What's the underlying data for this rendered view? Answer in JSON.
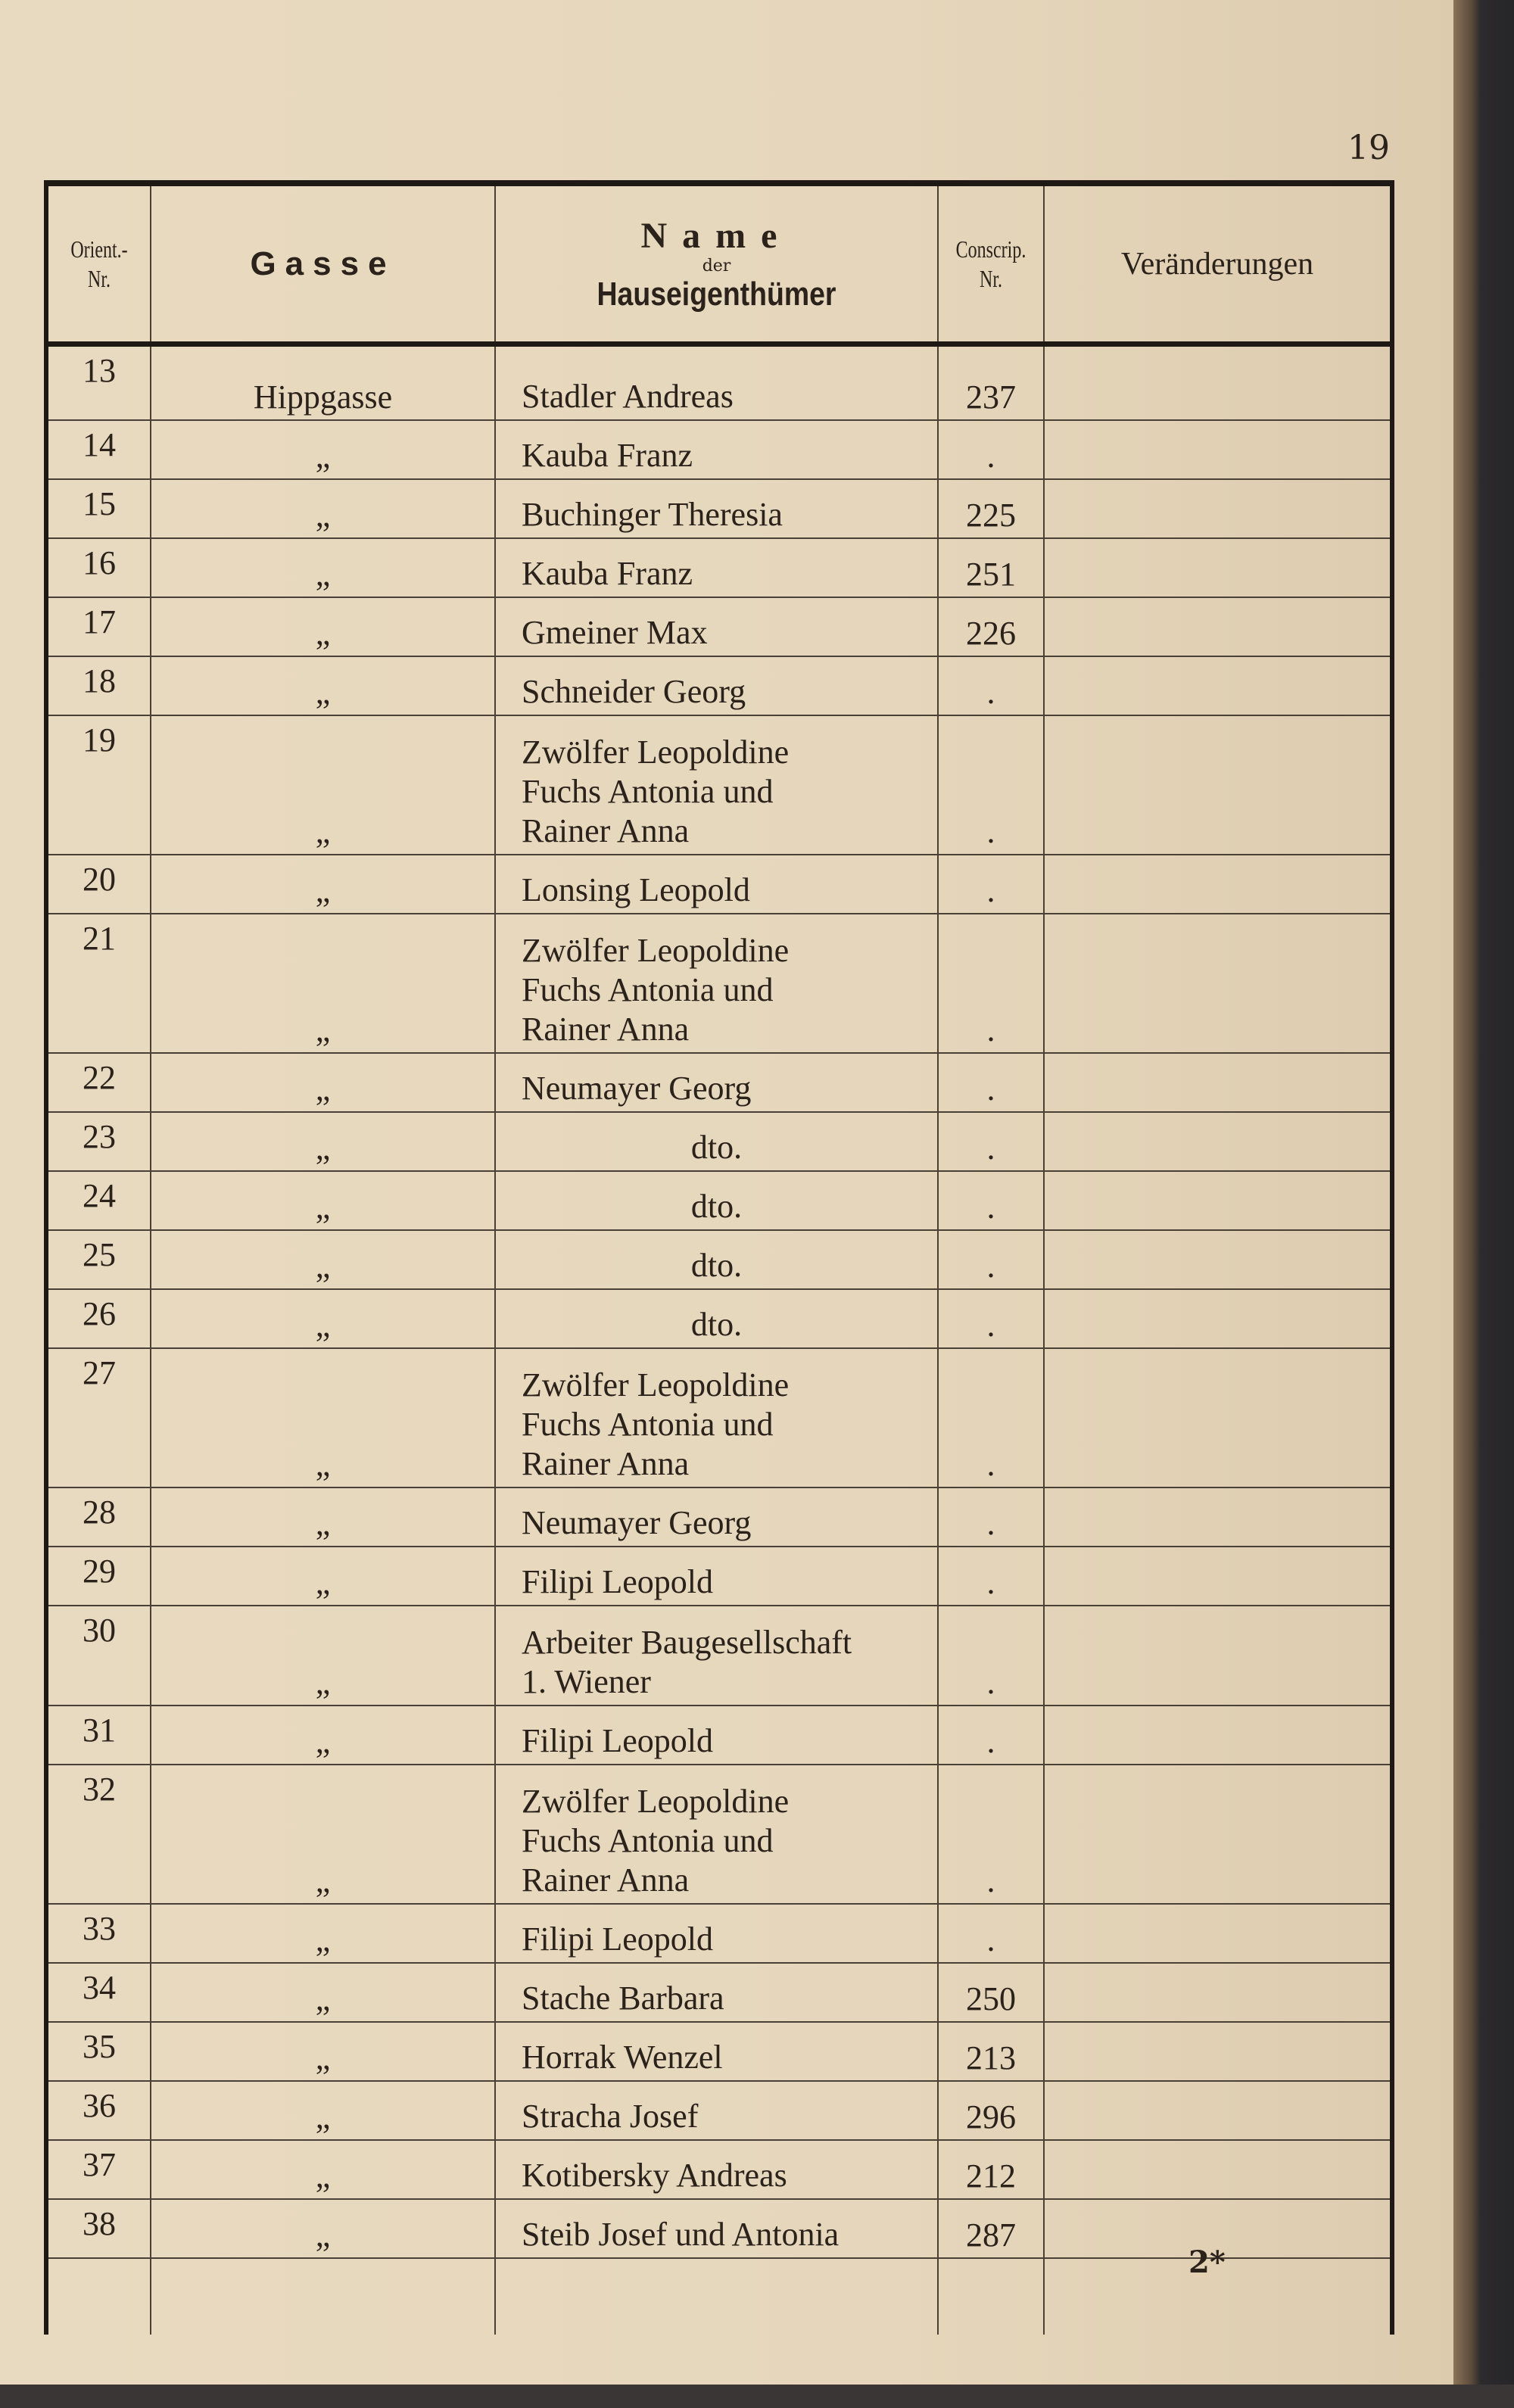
{
  "page_number": "19",
  "footer_mark": "2*",
  "header": {
    "orient_nr": "Orient.- Nr.",
    "gasse": "Gasse",
    "name_line1": "Name",
    "name_line2": "der",
    "name_line3": "Hauseigenthümer",
    "conscrip_nr": "Conscrip. Nr.",
    "veraenderungen": "Veränderungen"
  },
  "rows": [
    {
      "nr": "13",
      "gasse": "Hippgasse",
      "name": "Stadler Andreas",
      "cn": "237"
    },
    {
      "nr": "14",
      "gasse": "„",
      "name": "Kauba Franz",
      "cn": "."
    },
    {
      "nr": "15",
      "gasse": "„",
      "name": "Buchinger Theresia",
      "cn": "225"
    },
    {
      "nr": "16",
      "gasse": "„",
      "name": "Kauba Franz",
      "cn": "251"
    },
    {
      "nr": "17",
      "gasse": "„",
      "name": "Gmeiner Max",
      "cn": "226"
    },
    {
      "nr": "18",
      "gasse": "„",
      "name": "Schneider Georg",
      "cn": "."
    },
    {
      "nr": "19",
      "gasse": "„",
      "name": "Zwölfer Leopoldine\nFuchs Antonia und\nRainer Anna",
      "cn": "."
    },
    {
      "nr": "20",
      "gasse": "„",
      "name": "Lonsing Leopold",
      "cn": "."
    },
    {
      "nr": "21",
      "gasse": "„",
      "name": "Zwölfer Leopoldine\nFuchs Antonia und\nRainer Anna",
      "cn": "."
    },
    {
      "nr": "22",
      "gasse": "„",
      "name": "Neumayer Georg",
      "cn": "."
    },
    {
      "nr": "23",
      "gasse": "„",
      "name": "dto.",
      "cn": "."
    },
    {
      "nr": "24",
      "gasse": "„",
      "name": "dto.",
      "cn": "."
    },
    {
      "nr": "25",
      "gasse": "„",
      "name": "dto.",
      "cn": "."
    },
    {
      "nr": "26",
      "gasse": "„",
      "name": "dto.",
      "cn": "."
    },
    {
      "nr": "27",
      "gasse": "„",
      "name": "Zwölfer Leopoldine\nFuchs Antonia und\nRainer Anna",
      "cn": "."
    },
    {
      "nr": "28",
      "gasse": "„",
      "name": "Neumayer Georg",
      "cn": "."
    },
    {
      "nr": "29",
      "gasse": "„",
      "name": "Filipi Leopold",
      "cn": "."
    },
    {
      "nr": "30",
      "gasse": "„",
      "name": "Arbeiter Baugesellschaft\n1. Wiener",
      "cn": "."
    },
    {
      "nr": "31",
      "gasse": "„",
      "name": "Filipi Leopold",
      "cn": "."
    },
    {
      "nr": "32",
      "gasse": "„",
      "name": "Zwölfer Leopoldine\nFuchs Antonia und\nRainer Anna",
      "cn": "."
    },
    {
      "nr": "33",
      "gasse": "„",
      "name": "Filipi Leopold",
      "cn": "."
    },
    {
      "nr": "34",
      "gasse": "„",
      "name": "Stache Barbara",
      "cn": "250"
    },
    {
      "nr": "35",
      "gasse": "„",
      "name": "Horrak Wenzel",
      "cn": "213"
    },
    {
      "nr": "36",
      "gasse": "„",
      "name": "Stracha Josef",
      "cn": "296"
    },
    {
      "nr": "37",
      "gasse": "„",
      "name": "Kotibersky Andreas",
      "cn": "212"
    },
    {
      "nr": "38",
      "gasse": "„",
      "name": "Steib Josef und Antonia",
      "cn": "287"
    }
  ]
}
